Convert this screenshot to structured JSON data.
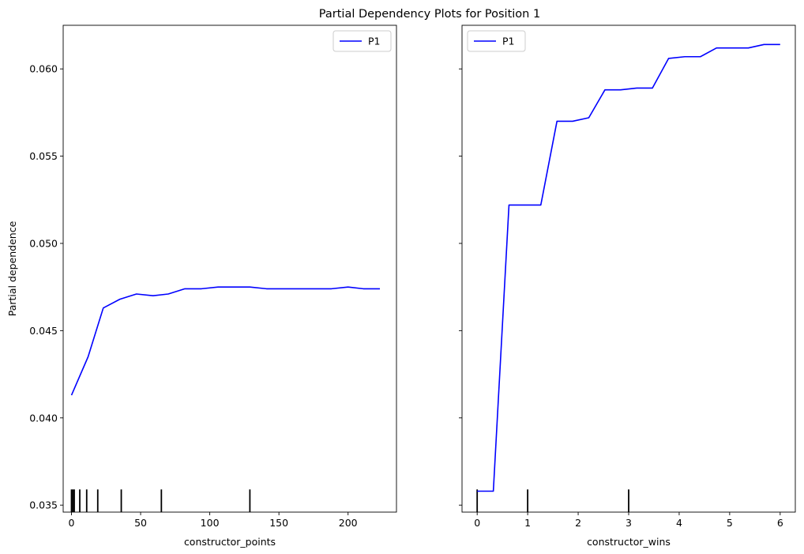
{
  "figure": {
    "title": "Partial Dependency Plots for Position 1"
  },
  "line_color": "#0000ff",
  "rug_color": "#000000",
  "chart_data": [
    {
      "type": "line",
      "xlabel": "constructor_points",
      "ylabel": "Partial dependence",
      "xlim": [
        -6,
        235
      ],
      "ylim": [
        0.0346,
        0.0625
      ],
      "xticks": [
        0,
        50,
        100,
        150,
        200
      ],
      "yticks": [
        0.035,
        0.04,
        0.045,
        0.05,
        0.055,
        0.06
      ],
      "ytick_labels": [
        "0.035",
        "0.040",
        "0.045",
        "0.050",
        "0.055",
        "0.060"
      ],
      "legend_position": "upper-right",
      "series": [
        {
          "name": "P1",
          "x": [
            0,
            12,
            23,
            35,
            47,
            59,
            70,
            82,
            94,
            106,
            117,
            129,
            141,
            153,
            164,
            176,
            188,
            200,
            211,
            223
          ],
          "y": [
            0.0413,
            0.0435,
            0.0463,
            0.0468,
            0.0471,
            0.047,
            0.0471,
            0.0474,
            0.0474,
            0.0475,
            0.0475,
            0.0475,
            0.0474,
            0.0474,
            0.0474,
            0.0474,
            0.0474,
            0.0475,
            0.0474,
            0.0474
          ]
        }
      ],
      "rug": [
        0,
        1,
        2,
        6,
        11,
        19,
        36,
        65,
        129
      ]
    },
    {
      "type": "line",
      "xlabel": "constructor_wins",
      "ylabel": "",
      "xlim": [
        -0.3,
        6.3
      ],
      "ylim": [
        0.0346,
        0.0625
      ],
      "xticks": [
        0,
        1,
        2,
        3,
        4,
        5,
        6
      ],
      "yticks": [
        0.035,
        0.04,
        0.045,
        0.05,
        0.055,
        0.06
      ],
      "ytick_labels": [],
      "legend_position": "upper-left",
      "series": [
        {
          "name": "P1",
          "x": [
            0,
            0.32,
            0.63,
            0.95,
            1.26,
            1.58,
            1.89,
            2.21,
            2.53,
            2.84,
            3.16,
            3.47,
            3.79,
            4.11,
            4.42,
            4.74,
            5.05,
            5.37,
            5.68,
            6.0
          ],
          "y": [
            0.0358,
            0.0358,
            0.0522,
            0.0522,
            0.0522,
            0.057,
            0.057,
            0.0572,
            0.0588,
            0.0588,
            0.0589,
            0.0589,
            0.0606,
            0.0607,
            0.0607,
            0.0612,
            0.0612,
            0.0612,
            0.0614,
            0.0614
          ]
        }
      ],
      "rug": [
        0,
        1,
        3
      ]
    }
  ]
}
